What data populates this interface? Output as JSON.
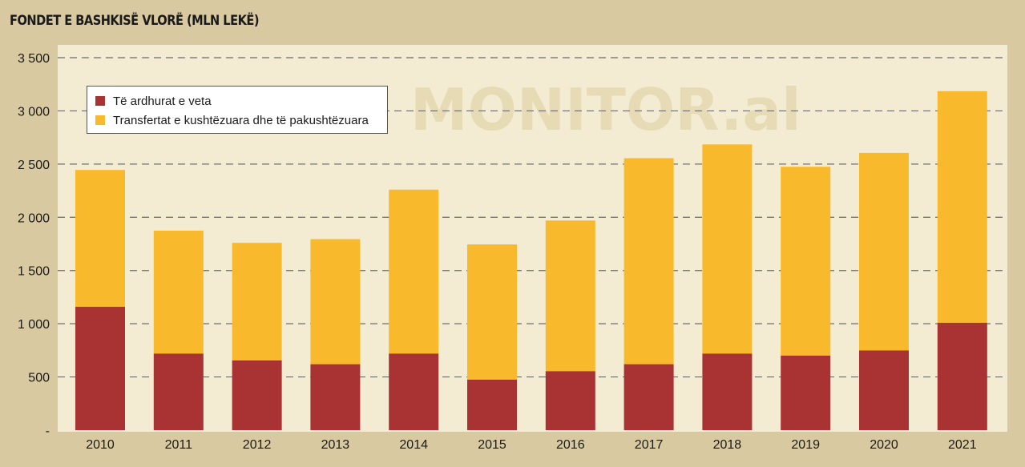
{
  "chart_data": {
    "type": "bar",
    "stacked": true,
    "title": "FONDET E BASHKISË VLORË (MLN LEKË)",
    "watermark": "MONITOR.al",
    "categories": [
      "2010",
      "2011",
      "2012",
      "2013",
      "2014",
      "2015",
      "2016",
      "2017",
      "2018",
      "2019",
      "2020",
      "2021"
    ],
    "series": [
      {
        "name": "Të ardhurat e veta",
        "color": "#a93232",
        "values": [
          1160,
          720,
          655,
          620,
          720,
          475,
          555,
          620,
          720,
          700,
          750,
          1010
        ]
      },
      {
        "name": "Transfertat e kushtëzuara dhe të pakushtëzuara",
        "color": "#f9b92c",
        "values": [
          1285,
          1155,
          1105,
          1175,
          1540,
          1270,
          1415,
          1935,
          1965,
          1775,
          1855,
          2175
        ]
      }
    ],
    "yticks": [
      {
        "value": 0,
        "label": "-"
      },
      {
        "value": 500,
        "label": "500"
      },
      {
        "value": 1000,
        "label": "1 000"
      },
      {
        "value": 1500,
        "label": "1 500"
      },
      {
        "value": 2000,
        "label": "2 000"
      },
      {
        "value": 2500,
        "label": "2 500"
      },
      {
        "value": 3000,
        "label": "3 000"
      },
      {
        "value": 3500,
        "label": "3 500"
      }
    ],
    "ylim": [
      0,
      3500
    ],
    "grid": true,
    "grid_style": "dashed",
    "legend_position": "top-left"
  }
}
